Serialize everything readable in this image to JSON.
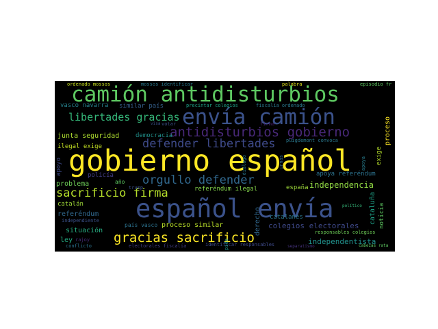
{
  "wordcloud": {
    "words": [
      {
        "text": "camión antidisturbios",
        "color": "#5ec962"
      },
      {
        "text": "envía camión",
        "color": "#3b528b"
      },
      {
        "text": "antidisturbios gobierno",
        "color": "#482878"
      },
      {
        "text": "libertades gracias",
        "color": "#35b779"
      },
      {
        "text": "defender libertades",
        "color": "#3e4a89"
      },
      {
        "text": "gobierno español",
        "color": "#fde725"
      },
      {
        "text": "orgullo defender",
        "color": "#31688e"
      },
      {
        "text": "sacrificio firma",
        "color": "#b5de2b"
      },
      {
        "text": "español envía",
        "color": "#3b528b"
      },
      {
        "text": "gracias sacrificio",
        "color": "#fde725"
      },
      {
        "text": "junta seguridad",
        "color": "#addc30"
      },
      {
        "text": "independencia",
        "color": "#90d743"
      },
      {
        "text": "colegios electorales",
        "color": "#3e4989"
      },
      {
        "text": "independentista",
        "color": "#21918c"
      },
      {
        "text": "vasco navarra",
        "color": "#26828e"
      },
      {
        "text": "similar país",
        "color": "#35608d"
      },
      {
        "text": "ordenado mossos",
        "color": "#c8e020"
      },
      {
        "text": "mossos identificar",
        "color": "#2a788e"
      },
      {
        "text": "precintar colegios",
        "color": "#1fa187"
      },
      {
        "text": "fiscalía ordenado",
        "color": "#2a788e"
      },
      {
        "text": "democracia",
        "color": "#21918c"
      },
      {
        "text": "ilegal exige",
        "color": "#c2df23"
      },
      {
        "text": "apoya referéndum",
        "color": "#2c728e"
      },
      {
        "text": "problema",
        "color": "#6ece58"
      },
      {
        "text": "policía",
        "color": "#433e85"
      },
      {
        "text": "año",
        "color": "#5ec962"
      },
      {
        "text": "referéndum ilegal",
        "color": "#84d44b"
      },
      {
        "text": "españa",
        "color": "#9fda3a"
      },
      {
        "text": "catalán",
        "color": "#a0da39"
      },
      {
        "text": "referéndum",
        "color": "#31688e"
      },
      {
        "text": "independiente",
        "color": "#3b528b"
      },
      {
        "text": "país vasco",
        "color": "#2c728e"
      },
      {
        "text": "proceso similar",
        "color": "#b8de29"
      },
      {
        "text": "catalanes",
        "color": "#2a788e"
      },
      {
        "text": "situación",
        "color": "#26ad81"
      },
      {
        "text": "ley",
        "color": "#25ac82"
      },
      {
        "text": "rajoy",
        "color": "#472d7b"
      },
      {
        "text": "conflicto",
        "color": "#2c728e"
      },
      {
        "text": "identificar responsables",
        "color": "#3e4a89"
      },
      {
        "text": "responsables colegios",
        "color": "#6ece58"
      },
      {
        "text": "separatismo",
        "color": "#46337f"
      },
      {
        "text": "palabra",
        "color": "#e5e419"
      },
      {
        "text": "episodio fr",
        "color": "#5ec962"
      },
      {
        "text": "votar",
        "color": "#3b528b"
      },
      {
        "text": "puigdemont convoca",
        "color": "#2a788e"
      },
      {
        "text": "trump",
        "color": "#3b528b"
      },
      {
        "text": "proceso",
        "color": "#fde725"
      },
      {
        "text": "exige",
        "color": "#b5de2b"
      },
      {
        "text": "apoyo",
        "color": "#3e4a89"
      },
      {
        "text": "derecho",
        "color": "#31688e"
      },
      {
        "text": "cataluña",
        "color": "#1fa187"
      },
      {
        "text": "noticia",
        "color": "#5ec962"
      },
      {
        "text": "diálogo",
        "color": "#2a788e"
      },
      {
        "text": "político",
        "color": "#35b779"
      },
      {
        "text": "urnas",
        "color": "#31688e"
      },
      {
        "text": "pide",
        "color": "#21918c"
      },
      {
        "text": "visa",
        "color": "#3b528b"
      },
      {
        "text": "electorales fiscalía",
        "color": "#433e85"
      },
      {
        "text": "cabezas rata",
        "color": "#5ec962"
      },
      {
        "text": "firma",
        "color": "#481f70"
      },
      {
        "text": "apoya",
        "color": "#287d8e"
      }
    ]
  }
}
